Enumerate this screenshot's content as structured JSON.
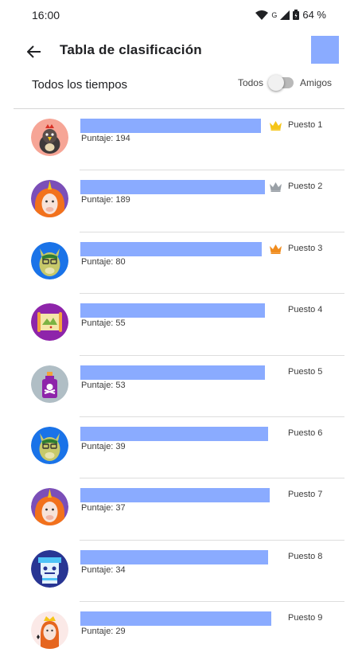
{
  "status": {
    "time": "16:00",
    "network": "G",
    "battery": "64 %"
  },
  "header": {
    "title": "Tabla de clasificación"
  },
  "filter": {
    "label": "Todos los tiempos",
    "toggle_left": "Todos",
    "toggle_right": "Amigos"
  },
  "colors": {
    "placeholder": "#8aabff",
    "gold": "#f5c518",
    "silver": "#9aa0a6",
    "bronze": "#f08c1e"
  },
  "entries": [
    {
      "score": "Puntaje: 194",
      "rank": "Puesto 1",
      "avatar": "chicken-avatar-icon",
      "crown": "gold"
    },
    {
      "score": "Puntaje: 189",
      "rank": "Puesto 2",
      "avatar": "unicorn-avatar-icon",
      "crown": "silver"
    },
    {
      "score": "Puntaje: 80",
      "rank": "Puesto 3",
      "avatar": "llama-avatar-icon",
      "crown": "bronze"
    },
    {
      "score": "Puntaje: 55",
      "rank": "Puesto 4",
      "avatar": "map-avatar-icon",
      "crown": ""
    },
    {
      "score": "Puntaje: 53",
      "rank": "Puesto 5",
      "avatar": "poison-bottle-avatar-icon",
      "crown": ""
    },
    {
      "score": "Puntaje: 39",
      "rank": "Puesto 6",
      "avatar": "llama-avatar-icon",
      "crown": ""
    },
    {
      "score": "Puntaje: 37",
      "rank": "Puesto 7",
      "avatar": "unicorn-avatar-icon",
      "crown": ""
    },
    {
      "score": "Puntaje: 34",
      "rank": "Puesto 8",
      "avatar": "robot-avatar-icon",
      "crown": ""
    },
    {
      "score": "Puntaje: 29",
      "rank": "Puesto 9",
      "avatar": "queen-card-avatar-icon",
      "crown": ""
    }
  ]
}
